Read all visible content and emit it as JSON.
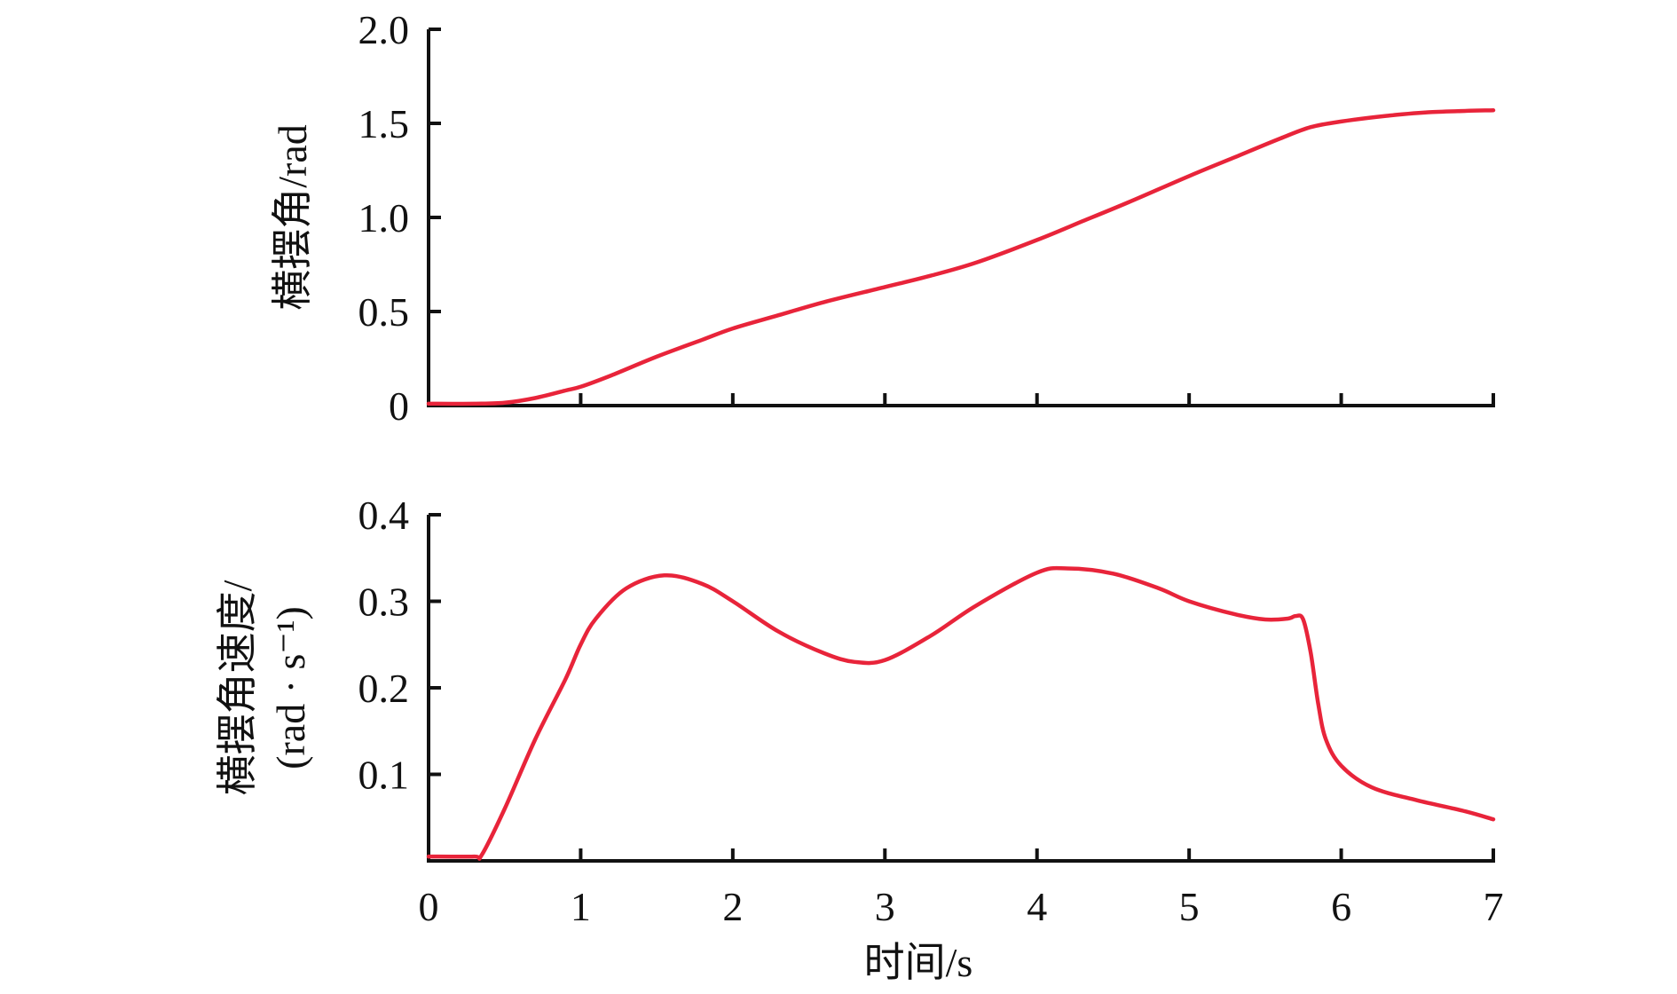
{
  "chart_data": [
    {
      "type": "line",
      "title": "",
      "xlabel": "",
      "ylabel": "横摆角/rad",
      "ylabel_lines": [
        "横摆角/rad"
      ],
      "xlim": [
        0,
        7
      ],
      "ylim": [
        0,
        2.0
      ],
      "x_ticks": [
        0,
        1,
        2,
        3,
        4,
        5,
        6,
        7
      ],
      "x_tick_labels": [],
      "y_ticks": [
        0,
        0.5,
        1.0,
        1.5,
        2.0
      ],
      "y_tick_labels": [
        "0",
        "0.5",
        "1.0",
        "1.5",
        "2.0"
      ],
      "grid": false,
      "color": "#e8243a",
      "series": [
        {
          "x": [
            0,
            0.3,
            0.5,
            0.7,
            0.9,
            1.0,
            1.2,
            1.5,
            1.8,
            2.0,
            2.3,
            2.6,
            3.0,
            3.3,
            3.6,
            4.0,
            4.3,
            4.6,
            5.0,
            5.3,
            5.6,
            5.8,
            6.0,
            6.3,
            6.6,
            7.0
          ],
          "y": [
            0.01,
            0.01,
            0.015,
            0.04,
            0.08,
            0.1,
            0.16,
            0.26,
            0.35,
            0.41,
            0.48,
            0.55,
            0.63,
            0.69,
            0.76,
            0.88,
            0.98,
            1.08,
            1.22,
            1.32,
            1.42,
            1.48,
            1.51,
            1.54,
            1.56,
            1.57
          ]
        }
      ]
    },
    {
      "type": "line",
      "title": "",
      "xlabel": "时间/s",
      "ylabel": "横摆角速度/(rad · s⁻¹)",
      "ylabel_lines": [
        "横摆角速度/",
        "(rad · s⁻¹)"
      ],
      "xlim": [
        0,
        7
      ],
      "ylim": [
        0,
        0.4
      ],
      "x_ticks": [
        0,
        1,
        2,
        3,
        4,
        5,
        6,
        7
      ],
      "x_tick_labels": [
        "0",
        "1",
        "2",
        "3",
        "4",
        "5",
        "6",
        "7"
      ],
      "y_ticks": [
        0.1,
        0.2,
        0.3,
        0.4
      ],
      "y_tick_labels": [
        "0.1",
        "0.2",
        "0.3",
        "0.4"
      ],
      "grid": false,
      "color": "#e8243a",
      "series": [
        {
          "x": [
            0,
            0.3,
            0.35,
            0.5,
            0.7,
            0.9,
            1.0,
            1.1,
            1.3,
            1.55,
            1.8,
            2.0,
            2.3,
            2.6,
            2.8,
            3.0,
            3.3,
            3.6,
            4.0,
            4.2,
            4.5,
            4.8,
            5.0,
            5.3,
            5.5,
            5.65,
            5.7,
            5.75,
            5.8,
            5.85,
            5.9,
            6.0,
            6.2,
            6.5,
            6.8,
            7.0
          ],
          "y": [
            0.005,
            0.005,
            0.007,
            0.06,
            0.14,
            0.21,
            0.25,
            0.28,
            0.315,
            0.33,
            0.32,
            0.3,
            0.265,
            0.24,
            0.23,
            0.232,
            0.26,
            0.295,
            0.333,
            0.338,
            0.332,
            0.315,
            0.3,
            0.285,
            0.279,
            0.28,
            0.283,
            0.279,
            0.24,
            0.18,
            0.14,
            0.11,
            0.085,
            0.07,
            0.058,
            0.048
          ]
        }
      ]
    }
  ]
}
